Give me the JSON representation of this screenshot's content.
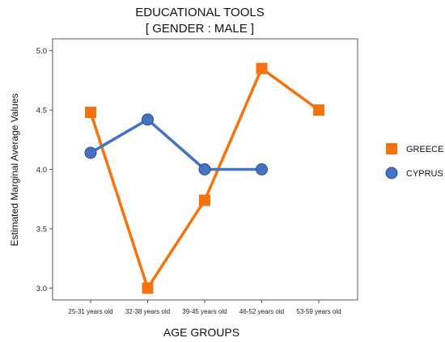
{
  "chart_data": {
    "type": "line",
    "title": "EDUCATIONAL TOOLS",
    "subtitle": "[ GENDER : MALE ]",
    "xlabel": "AGE GROUPS",
    "ylabel": "Estimated Marginal Average Values",
    "categories": [
      "25-31 years old",
      "32-38 years old",
      "39-45 years old",
      "46-52 years old",
      "53-59 years old"
    ],
    "ylim": [
      2.9,
      5.1
    ],
    "yticks": [
      "3.0",
      "3.5",
      "4.0",
      "4.5",
      "5.0"
    ],
    "grid": false,
    "legend": "right",
    "series": [
      {
        "name": "GREECE",
        "values": [
          4.48,
          3.0,
          3.74,
          4.85,
          4.5
        ],
        "color": "#f5720f",
        "marker": "square"
      },
      {
        "name": "CYPRUS",
        "values": [
          4.14,
          4.42,
          4.0,
          4.0,
          null
        ],
        "color": "#4472c4",
        "marker": "circle"
      }
    ]
  }
}
